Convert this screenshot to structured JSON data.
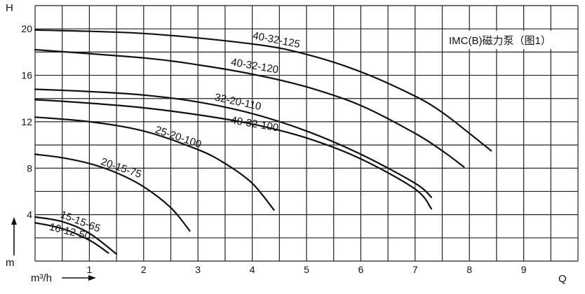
{
  "chart_data": {
    "type": "line",
    "title": "IMC(B)磁力泵（图1）",
    "xlabel": "Q",
    "xunit": "m³/h",
    "ylabel": "H",
    "yunit": "m",
    "xlim": [
      0,
      10
    ],
    "ylim": [
      0,
      22
    ],
    "x_ticks": [
      1,
      2,
      3,
      4,
      5,
      6,
      7,
      8,
      9
    ],
    "y_ticks": [
      4,
      8,
      12,
      16,
      20
    ],
    "grid": true,
    "series": [
      {
        "name": "40-32-125",
        "points": [
          [
            0,
            19.9
          ],
          [
            2,
            19.6
          ],
          [
            4,
            18.7
          ],
          [
            5,
            17.8
          ],
          [
            6,
            16.3
          ],
          [
            7,
            14.2
          ],
          [
            7.5,
            12.8
          ],
          [
            8,
            11.0
          ],
          [
            8.4,
            9.5
          ]
        ]
      },
      {
        "name": "40-32-120",
        "points": [
          [
            0,
            18.2
          ],
          [
            2,
            17.5
          ],
          [
            3,
            16.9
          ],
          [
            4,
            16.1
          ],
          [
            5,
            15.0
          ],
          [
            6,
            13.4
          ],
          [
            7,
            11.0
          ],
          [
            7.5,
            9.5
          ],
          [
            7.9,
            8.1
          ]
        ]
      },
      {
        "name": "32-20-110",
        "points": [
          [
            0,
            14.8
          ],
          [
            1,
            14.6
          ],
          [
            2,
            14.3
          ],
          [
            3,
            13.7
          ],
          [
            4,
            12.7
          ],
          [
            5,
            11.2
          ],
          [
            6,
            9.2
          ],
          [
            7,
            6.7
          ],
          [
            7.3,
            5.5
          ]
        ]
      },
      {
        "name": "40-32-100",
        "points": [
          [
            0,
            13.9
          ],
          [
            1,
            13.6
          ],
          [
            2,
            13.2
          ],
          [
            3,
            12.6
          ],
          [
            4,
            11.8
          ],
          [
            5,
            10.6
          ],
          [
            6,
            8.8
          ],
          [
            7,
            6.2
          ],
          [
            7.3,
            4.5
          ]
        ]
      },
      {
        "name": "25-20-100",
        "points": [
          [
            0,
            12.4
          ],
          [
            1,
            12.0
          ],
          [
            2,
            11.2
          ],
          [
            3,
            9.6
          ],
          [
            3.5,
            8.4
          ],
          [
            4,
            6.7
          ],
          [
            4.4,
            4.4
          ]
        ]
      },
      {
        "name": "20-15-75",
        "points": [
          [
            0,
            9.2
          ],
          [
            0.5,
            8.9
          ],
          [
            1,
            8.4
          ],
          [
            1.5,
            7.6
          ],
          [
            2,
            6.4
          ],
          [
            2.5,
            4.6
          ],
          [
            2.85,
            2.6
          ]
        ]
      },
      {
        "name": "15-15-65",
        "points": [
          [
            0,
            3.8
          ],
          [
            0.5,
            3.4
          ],
          [
            1,
            2.4
          ],
          [
            1.5,
            0.6
          ]
        ]
      },
      {
        "name": "16-12-50",
        "points": [
          [
            0,
            3.3
          ],
          [
            0.5,
            2.8
          ],
          [
            1,
            1.8
          ],
          [
            1.35,
            0.7
          ]
        ]
      }
    ]
  }
}
